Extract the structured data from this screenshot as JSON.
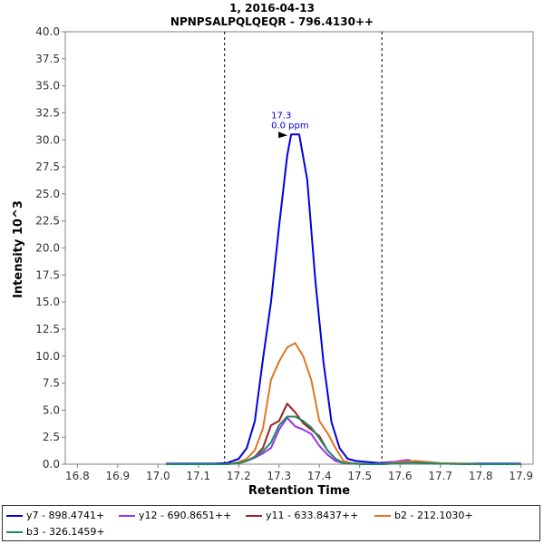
{
  "chart_data": {
    "type": "line",
    "title": "1, 2016-04-13",
    "subtitle": "NPNPSALPQLQEQR - 796.4130++",
    "xlabel": "Retention Time",
    "ylabel": "Intensity 10^3",
    "xlim": [
      16.77,
      17.93
    ],
    "ylim": [
      0,
      40
    ],
    "x_ticks": [
      "16.8",
      "16.9",
      "17.0",
      "17.1",
      "17.2",
      "17.3",
      "17.4",
      "17.5",
      "17.6",
      "17.7",
      "17.8",
      "17.9"
    ],
    "y_ticks": [
      "0.0",
      "2.5",
      "5.0",
      "7.5",
      "10.0",
      "12.5",
      "15.0",
      "17.5",
      "20.0",
      "22.5",
      "25.0",
      "27.5",
      "30.0",
      "32.5",
      "35.0",
      "37.5",
      "40.0"
    ],
    "boundaries": [
      17.165,
      17.555
    ],
    "peak_annotation": {
      "x": 17.33,
      "y": 30.5,
      "label": "17.3",
      "sublabel": "0.0 ppm"
    },
    "grid": false,
    "legend_position": "bottom",
    "series": [
      {
        "name": "y7 - 898.4741+",
        "color": "#0000e0",
        "x": [
          17.02,
          17.05,
          17.08,
          17.11,
          17.14,
          17.17,
          17.2,
          17.22,
          17.24,
          17.26,
          17.28,
          17.3,
          17.32,
          17.33,
          17.35,
          17.37,
          17.39,
          17.41,
          17.43,
          17.45,
          17.47,
          17.49,
          17.52,
          17.55,
          17.58,
          17.62,
          17.66,
          17.7,
          17.74,
          17.78,
          17.82,
          17.86,
          17.9
        ],
        "y": [
          0.05,
          0.05,
          0.05,
          0.05,
          0.05,
          0.1,
          0.5,
          1.5,
          4.0,
          9.7,
          15.0,
          22.0,
          28.5,
          30.5,
          30.5,
          26.3,
          17.0,
          9.5,
          3.9,
          1.5,
          0.5,
          0.3,
          0.2,
          0.1,
          0.2,
          0.2,
          0.1,
          0.05,
          0.05,
          0.05,
          0.05,
          0.05,
          0.05
        ]
      },
      {
        "name": "y12 - 690.8651++",
        "color": "#9933ee",
        "x": [
          17.02,
          17.1,
          17.17,
          17.2,
          17.22,
          17.24,
          17.26,
          17.28,
          17.3,
          17.32,
          17.34,
          17.36,
          17.38,
          17.4,
          17.42,
          17.44,
          17.46,
          17.48,
          17.52,
          17.56,
          17.6,
          17.62,
          17.64,
          17.7,
          17.8,
          17.9
        ],
        "y": [
          0.0,
          0.0,
          0.0,
          0.1,
          0.3,
          0.6,
          1.0,
          1.5,
          3.2,
          4.3,
          3.5,
          3.2,
          2.8,
          1.7,
          0.9,
          0.3,
          0.1,
          0.05,
          0.0,
          0.05,
          0.3,
          0.4,
          0.15,
          0.05,
          0.0,
          0.0
        ]
      },
      {
        "name": "y11 - 633.8437++",
        "color": "#992222",
        "x": [
          17.02,
          17.1,
          17.17,
          17.2,
          17.22,
          17.24,
          17.26,
          17.28,
          17.3,
          17.32,
          17.34,
          17.36,
          17.38,
          17.4,
          17.42,
          17.44,
          17.46,
          17.48,
          17.52,
          17.56,
          17.6,
          17.64,
          17.7,
          17.8,
          17.9
        ],
        "y": [
          0.0,
          0.0,
          0.0,
          0.1,
          0.3,
          0.7,
          1.5,
          3.6,
          4.0,
          5.6,
          4.8,
          3.8,
          3.2,
          2.6,
          1.3,
          0.5,
          0.1,
          0.05,
          0.0,
          0.0,
          0.15,
          0.2,
          0.05,
          0.0,
          0.0
        ]
      },
      {
        "name": "b2 - 212.1030+",
        "color": "#dd7722",
        "x": [
          17.02,
          17.1,
          17.17,
          17.2,
          17.22,
          17.24,
          17.26,
          17.28,
          17.3,
          17.32,
          17.34,
          17.36,
          17.38,
          17.4,
          17.42,
          17.44,
          17.46,
          17.48,
          17.52,
          17.56,
          17.6,
          17.64,
          17.7,
          17.8,
          17.9
        ],
        "y": [
          0.0,
          0.0,
          0.0,
          0.2,
          0.5,
          1.3,
          3.3,
          7.8,
          9.5,
          10.8,
          11.2,
          10.0,
          7.8,
          4.0,
          2.9,
          1.5,
          0.3,
          0.1,
          0.0,
          0.0,
          0.2,
          0.3,
          0.1,
          0.0,
          0.0
        ]
      },
      {
        "name": "b3 - 326.1459+",
        "color": "#228866",
        "x": [
          17.02,
          17.1,
          17.17,
          17.2,
          17.22,
          17.24,
          17.26,
          17.28,
          17.3,
          17.32,
          17.34,
          17.36,
          17.38,
          17.4,
          17.42,
          17.44,
          17.46,
          17.48,
          17.52,
          17.56,
          17.6,
          17.64,
          17.7,
          17.8,
          17.9
        ],
        "y": [
          0.0,
          0.0,
          0.0,
          0.1,
          0.3,
          0.7,
          1.2,
          2.0,
          3.6,
          4.4,
          4.4,
          4.0,
          3.4,
          2.4,
          1.3,
          0.5,
          0.1,
          0.05,
          0.0,
          0.0,
          0.1,
          0.15,
          0.05,
          0.0,
          0.0
        ]
      }
    ]
  }
}
